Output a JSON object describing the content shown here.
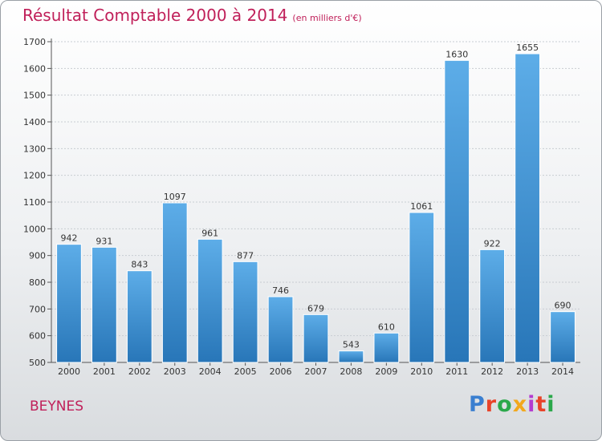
{
  "header": {
    "title": "Résultat Comptable 2000 à 2014",
    "subtitle": "(en milliers d'€)"
  },
  "footer": {
    "city": "BEYNES",
    "logo": "Proxiti",
    "logo_colors": [
      "#3a7fd0",
      "#e8432a",
      "#2aa84a",
      "#f2a81d",
      "#b43ccf",
      "#e8432a",
      "#2aa84a"
    ]
  },
  "colors": {
    "title": "#c0205a",
    "bar_top": "#5dade8",
    "bar_bottom": "#2876b8",
    "grid": "#c8cdd2"
  },
  "chart_data": {
    "type": "bar",
    "categories": [
      "2000",
      "2001",
      "2002",
      "2003",
      "2004",
      "2005",
      "2006",
      "2007",
      "2008",
      "2009",
      "2010",
      "2011",
      "2012",
      "2013",
      "2014"
    ],
    "values": [
      942,
      931,
      843,
      1097,
      961,
      877,
      746,
      679,
      543,
      610,
      1061,
      1630,
      922,
      1655,
      690
    ],
    "ylim": [
      500,
      1700
    ],
    "yticks": [
      500,
      600,
      700,
      800,
      900,
      1000,
      1100,
      1200,
      1300,
      1400,
      1500,
      1600,
      1700
    ],
    "grid": true
  }
}
